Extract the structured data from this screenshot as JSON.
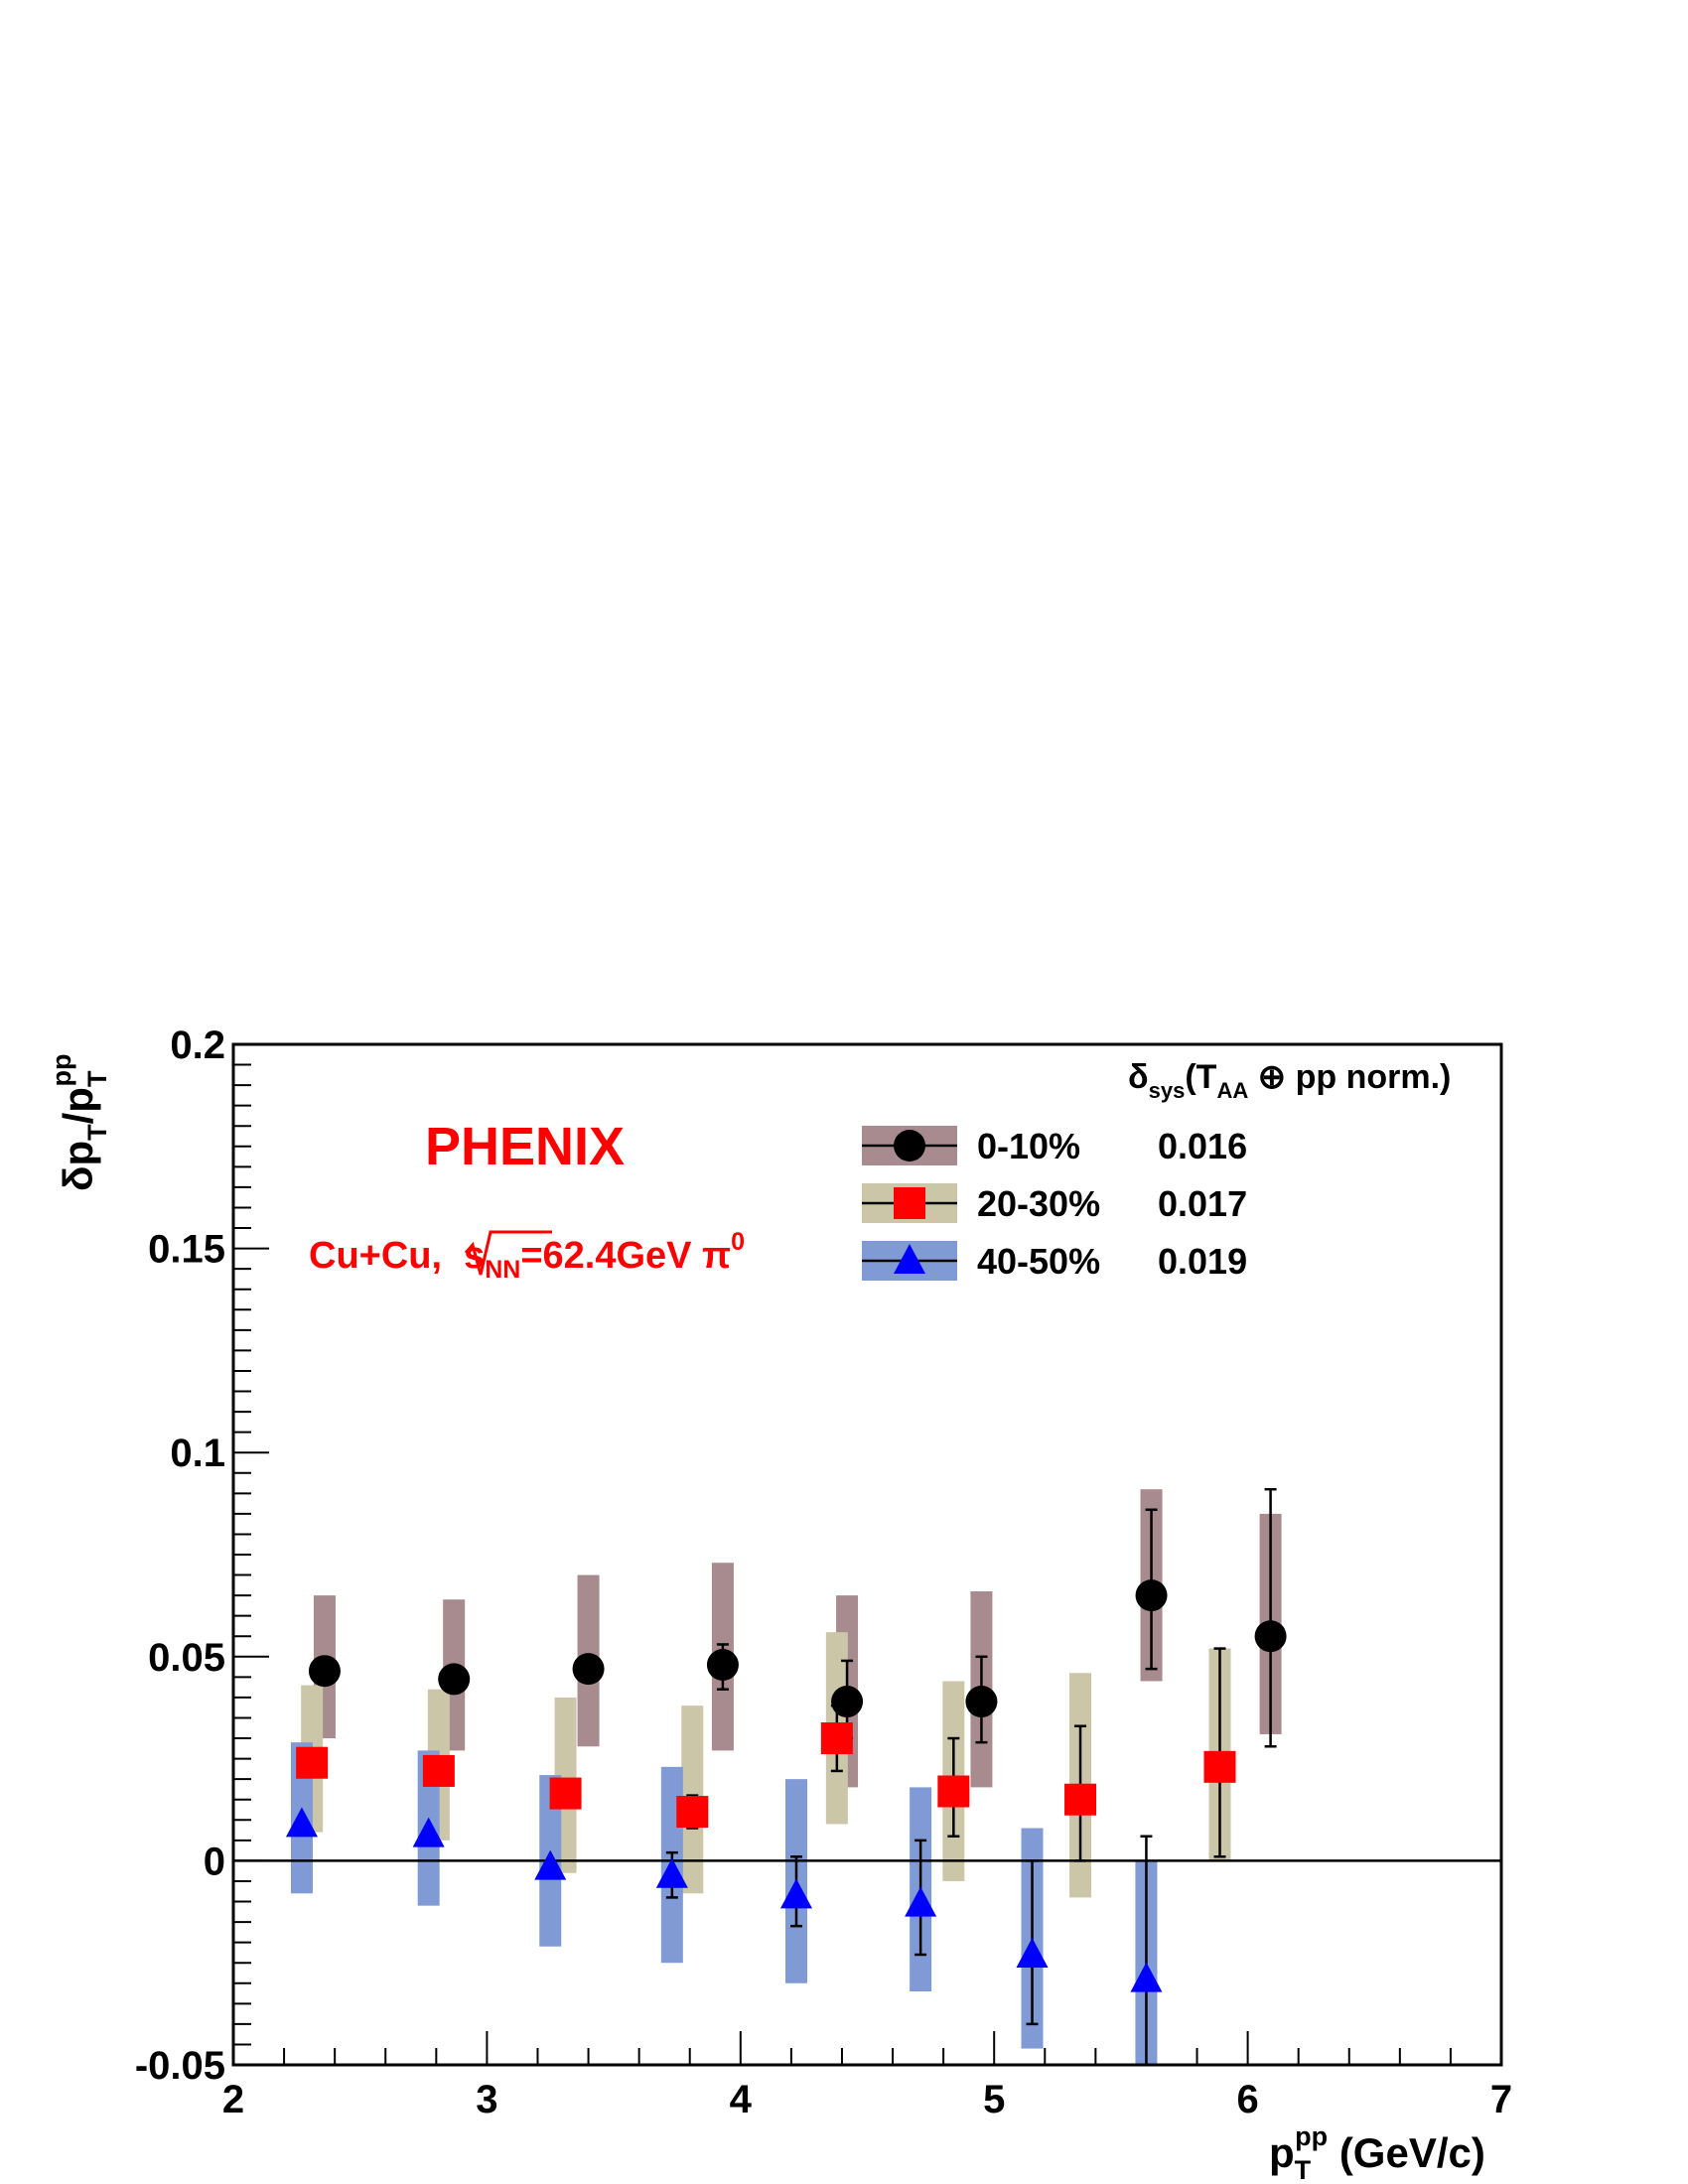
{
  "chart_data": {
    "type": "scatter",
    "title": "",
    "annotation_experiment": "PHENIX",
    "annotation_system": {
      "prefix": "Cu+Cu,",
      "sqrt_s": "s",
      "sqrt_s_sub": "NN",
      "energy": "=62.4GeV π",
      "particle_sup": "0"
    },
    "xlabel": {
      "main": "p",
      "sub": "T",
      "sup": "pp",
      "unit": " (GeV/c)"
    },
    "ylabel": {
      "delta": "δ",
      "p1": "p",
      "sub1": "T",
      "slash": "/p",
      "sub2": "T",
      "sup2": "pp"
    },
    "xlim": [
      2,
      7
    ],
    "ylim": [
      -0.05,
      0.2
    ],
    "x_ticks": [
      "2",
      "3",
      "4",
      "5",
      "6",
      "7"
    ],
    "y_ticks": [
      "-0.05",
      "0",
      "0.05",
      "0.1",
      "0.15",
      "0.2"
    ],
    "grid": false,
    "zero_line": true,
    "legend_placement": "top-right",
    "legend_header": {
      "delta": "δ",
      "sub": "sys",
      "open": "(T",
      "sub2": "AA",
      "rest": " ⊕ pp norm.)"
    },
    "series": [
      {
        "name": "0-10%",
        "norm_sys": "0.016",
        "marker": "circle",
        "marker_color": "#000000",
        "band_color": "#a88b8f",
        "points": [
          {
            "x": 2.36,
            "y": 0.0465,
            "err_lo": 0,
            "err_hi": 0,
            "sys_lo": 0.03,
            "sys_hi": 0.065
          },
          {
            "x": 2.87,
            "y": 0.0445,
            "err_lo": 0,
            "err_hi": 0,
            "sys_lo": 0.027,
            "sys_hi": 0.064
          },
          {
            "x": 3.4,
            "y": 0.047,
            "err_lo": 0,
            "err_hi": 0,
            "sys_lo": 0.028,
            "sys_hi": 0.07
          },
          {
            "x": 3.93,
            "y": 0.048,
            "err_lo": 0.042,
            "err_hi": 0.053,
            "sys_lo": 0.027,
            "sys_hi": 0.073
          },
          {
            "x": 4.42,
            "y": 0.039,
            "err_lo": 0.03,
            "err_hi": 0.049,
            "sys_lo": 0.018,
            "sys_hi": 0.065
          },
          {
            "x": 4.95,
            "y": 0.039,
            "err_lo": 0.029,
            "err_hi": 0.05,
            "sys_lo": 0.018,
            "sys_hi": 0.066
          },
          {
            "x": 5.62,
            "y": 0.065,
            "err_lo": 0.047,
            "err_hi": 0.086,
            "sys_lo": 0.044,
            "sys_hi": 0.091
          },
          {
            "x": 6.09,
            "y": 0.055,
            "err_lo": 0.028,
            "err_hi": 0.091,
            "sys_lo": 0.031,
            "sys_hi": 0.085
          }
        ]
      },
      {
        "name": "20-30%",
        "norm_sys": "0.017",
        "marker": "square",
        "marker_color": "#ff0000",
        "band_color": "#ccc6a8",
        "points": [
          {
            "x": 2.31,
            "y": 0.024,
            "err_lo": 0,
            "err_hi": 0,
            "sys_lo": 0.007,
            "sys_hi": 0.043
          },
          {
            "x": 2.81,
            "y": 0.022,
            "err_lo": 0,
            "err_hi": 0,
            "sys_lo": 0.005,
            "sys_hi": 0.042
          },
          {
            "x": 3.31,
            "y": 0.0165,
            "err_lo": 0,
            "err_hi": 0,
            "sys_lo": -0.003,
            "sys_hi": 0.04
          },
          {
            "x": 3.81,
            "y": 0.012,
            "err_lo": 0.008,
            "err_hi": 0.016,
            "sys_lo": -0.008,
            "sys_hi": 0.038
          },
          {
            "x": 4.38,
            "y": 0.03,
            "err_lo": 0.022,
            "err_hi": 0.038,
            "sys_lo": 0.009,
            "sys_hi": 0.056
          },
          {
            "x": 4.84,
            "y": 0.017,
            "err_lo": 0.006,
            "err_hi": 0.03,
            "sys_lo": -0.005,
            "sys_hi": 0.044
          },
          {
            "x": 5.34,
            "y": 0.015,
            "err_lo": 0.0,
            "err_hi": 0.033,
            "sys_lo": -0.009,
            "sys_hi": 0.046
          },
          {
            "x": 5.89,
            "y": 0.023,
            "err_lo": 0.001,
            "err_hi": 0.052,
            "sys_lo": 0.0,
            "sys_hi": 0.052
          }
        ]
      },
      {
        "name": "40-50%",
        "norm_sys": "0.019",
        "marker": "triangle",
        "marker_color": "#0000ff",
        "band_color": "#7f9ad4",
        "points": [
          {
            "x": 2.27,
            "y": 0.009,
            "err_lo": 0,
            "err_hi": 0,
            "sys_lo": -0.008,
            "sys_hi": 0.029
          },
          {
            "x": 2.77,
            "y": 0.0065,
            "err_lo": 0,
            "err_hi": 0,
            "sys_lo": -0.011,
            "sys_hi": 0.027
          },
          {
            "x": 3.25,
            "y": -0.0015,
            "err_lo": 0,
            "err_hi": 0,
            "sys_lo": -0.021,
            "sys_hi": 0.021
          },
          {
            "x": 3.73,
            "y": -0.0035,
            "err_lo": -0.009,
            "err_hi": 0.002,
            "sys_lo": -0.025,
            "sys_hi": 0.023
          },
          {
            "x": 4.22,
            "y": -0.0085,
            "err_lo": -0.016,
            "err_hi": 0.001,
            "sys_lo": -0.03,
            "sys_hi": 0.02
          },
          {
            "x": 4.71,
            "y": -0.0105,
            "err_lo": -0.023,
            "err_hi": 0.005,
            "sys_lo": -0.032,
            "sys_hi": 0.018
          },
          {
            "x": 5.15,
            "y": -0.023,
            "err_lo": -0.04,
            "err_hi": 0.0,
            "sys_lo": -0.046,
            "sys_hi": 0.008
          },
          {
            "x": 5.6,
            "y": -0.029,
            "err_lo": -0.05,
            "err_hi": 0.006,
            "sys_lo": -0.05,
            "sys_hi": 0.0
          }
        ]
      }
    ]
  }
}
